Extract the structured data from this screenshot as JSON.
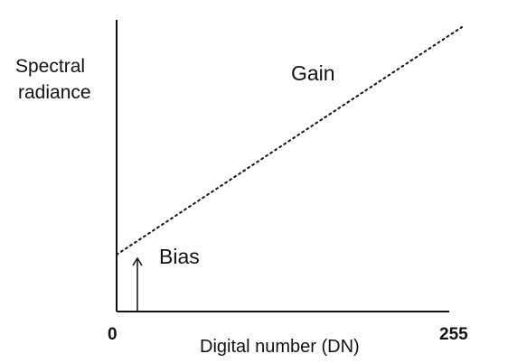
{
  "chart_data": {
    "type": "line",
    "title": "",
    "ylabel": [
      "Spectral",
      "radiance"
    ],
    "xlabel": "Digital number (DN)",
    "x_ticks": [
      "0",
      "255"
    ],
    "xlim": [
      0,
      255
    ],
    "series": [
      {
        "x": [
          0,
          255
        ],
        "y": [
          0.2,
          1.0
        ]
      }
    ],
    "annotations": {
      "gain": "Gain",
      "bias": "Bias"
    },
    "grid": false,
    "line_style": "dotted",
    "color": "#111111"
  }
}
